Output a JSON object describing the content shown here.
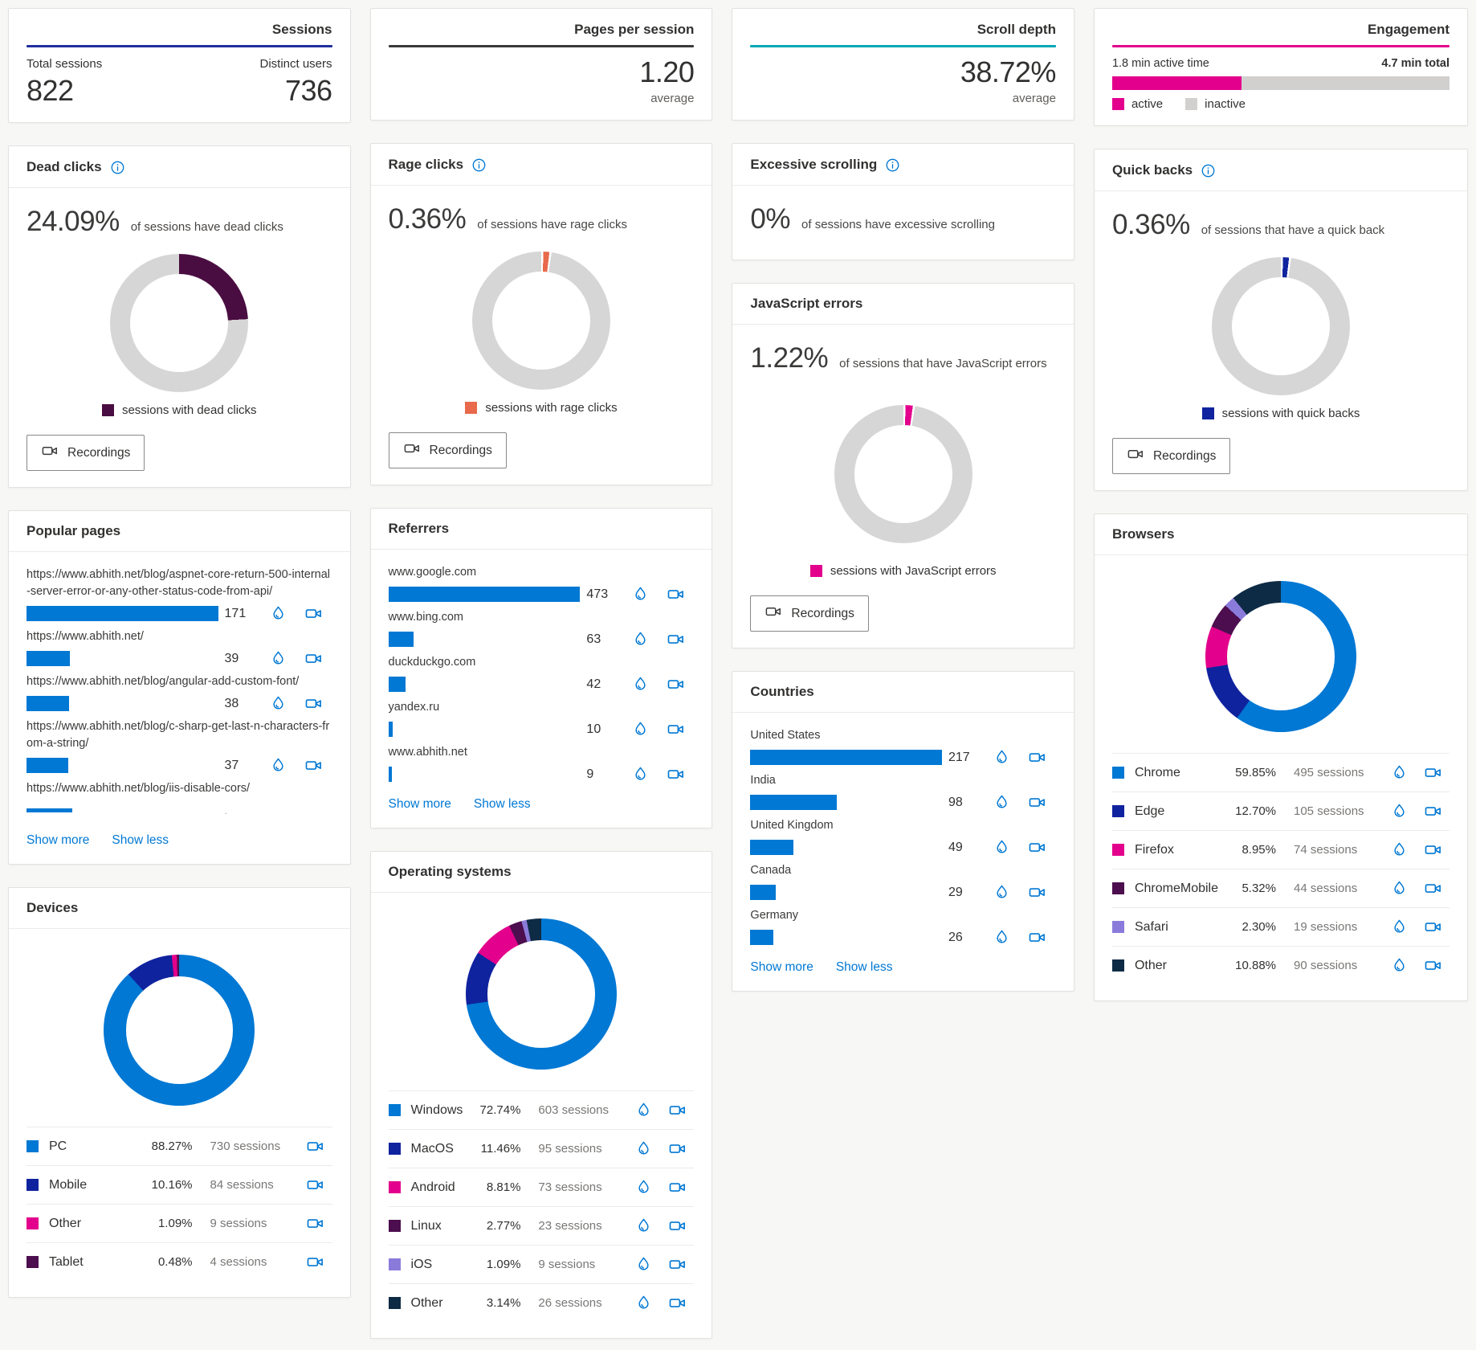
{
  "summary": {
    "sessions": {
      "title": "Sessions",
      "accent": "#212F9C",
      "metrics": [
        {
          "label": "Total sessions",
          "value": "822"
        },
        {
          "label": "Distinct users",
          "value": "736"
        }
      ]
    },
    "pages_per_session": {
      "title": "Pages per session",
      "accent": "#3B3A39",
      "value": "1.20",
      "caption": "average"
    },
    "scroll_depth": {
      "title": "Scroll depth",
      "accent": "#00A7B5",
      "value": "38.72%",
      "caption": "average"
    },
    "engagement": {
      "title": "Engagement",
      "accent": "#E3008C",
      "active_label": "1.8 min active time",
      "total_label": "4.7 min total",
      "active_pct": 38.3,
      "color": "#E3008C",
      "inactive_color": "#D2D0CE",
      "legend_active": "active",
      "legend_inactive": "inactive"
    }
  },
  "features": {
    "dead_clicks": {
      "title": "Dead clicks",
      "value": "24.09%",
      "caption": "of sessions have dead clicks",
      "legend": "sessions with dead clicks",
      "color": "#4A0D41",
      "pct": 24.09,
      "donut": [
        {
          "color": "#4A0D41",
          "pct": 24.09
        },
        {
          "color": "#D6D6D6",
          "pct": 75.91
        }
      ],
      "recordings_label": "Recordings"
    },
    "rage_clicks": {
      "title": "Rage clicks",
      "value": "0.36%",
      "caption": "of sessions have rage clicks",
      "legend": "sessions with rage clicks",
      "color": "#E8694B",
      "pct": 0.36,
      "donut": [
        {
          "color": "#FFFFFF",
          "pct": 0.5
        },
        {
          "color": "#E8694B",
          "pct": 1.4
        },
        {
          "color": "#FFFFFF",
          "pct": 0.5
        },
        {
          "color": "#D6D6D6",
          "pct": 97.6
        }
      ],
      "recordings_label": "Recordings"
    },
    "excessive_scrolling": {
      "title": "Excessive scrolling",
      "value": "0%",
      "caption": "of sessions have excessive scrolling"
    },
    "javascript_errors": {
      "title": "JavaScript errors",
      "value": "1.22%",
      "caption": "of sessions that have JavaScript errors",
      "legend": "sessions with JavaScript errors",
      "color": "#E3008C",
      "pct": 1.22,
      "donut": [
        {
          "color": "#FFFFFF",
          "pct": 0.5
        },
        {
          "color": "#E3008C",
          "pct": 1.7
        },
        {
          "color": "#FFFFFF",
          "pct": 0.5
        },
        {
          "color": "#D6D6D6",
          "pct": 97.3
        }
      ],
      "recordings_label": "Recordings"
    },
    "quick_backs": {
      "title": "Quick backs",
      "value": "0.36%",
      "caption": "of sessions that have a quick back",
      "legend": "sessions with quick backs",
      "color": "#10239E",
      "pct": 0.36,
      "donut": [
        {
          "color": "#FFFFFF",
          "pct": 0.5
        },
        {
          "color": "#10239E",
          "pct": 1.4
        },
        {
          "color": "#FFFFFF",
          "pct": 0.5
        },
        {
          "color": "#D6D6D6",
          "pct": 97.6
        }
      ],
      "recordings_label": "Recordings"
    }
  },
  "lists": {
    "popular_pages": {
      "title": "Popular pages",
      "show_more": "Show more",
      "show_less": "Show less",
      "items": [
        {
          "label": "https://www.abhith.net/blog/aspnet-core-return-500-internal-server-error-or-any-other-status-code-from-api/",
          "value": "171",
          "bar_pct": 100
        },
        {
          "label": "https://www.abhith.net/",
          "value": "39",
          "bar_pct": 22.8
        },
        {
          "label": "https://www.abhith.net/blog/angular-add-custom-font/",
          "value": "38",
          "bar_pct": 22.2
        },
        {
          "label": "https://www.abhith.net/blog/c-sharp-get-last-n-characters-from-a-string/",
          "value": "37",
          "bar_pct": 21.6
        },
        {
          "label": "https://www.abhith.net/blog/iis-disable-cors/",
          "value": ".",
          "bar_pct": 24,
          "row_class": "partial"
        }
      ]
    },
    "referrers": {
      "title": "Referrers",
      "show_more": "Show more",
      "show_less": "Show less",
      "items": [
        {
          "label": "www.google.com",
          "value": "473",
          "bar_pct": 100
        },
        {
          "label": "www.bing.com",
          "value": "63",
          "bar_pct": 13.3
        },
        {
          "label": "duckduckgo.com",
          "value": "42",
          "bar_pct": 8.9
        },
        {
          "label": "yandex.ru",
          "value": "10",
          "bar_pct": 2.1
        },
        {
          "label": "www.abhith.net",
          "value": "9",
          "bar_pct": 1.9
        }
      ]
    },
    "countries": {
      "title": "Countries",
      "show_more": "Show more",
      "show_less": "Show less",
      "items": [
        {
          "label": "United States",
          "value": "217",
          "bar_pct": 100
        },
        {
          "label": "India",
          "value": "98",
          "bar_pct": 45.2
        },
        {
          "label": "United Kingdom",
          "value": "49",
          "bar_pct": 22.6
        },
        {
          "label": "Canada",
          "value": "29",
          "bar_pct": 13.4
        },
        {
          "label": "Germany",
          "value": "26",
          "bar_pct": 12
        }
      ]
    }
  },
  "distributions": {
    "browsers": {
      "title": "Browsers",
      "donut": [
        {
          "color": "#0078D4",
          "pct": 59.85
        },
        {
          "color": "#10239E",
          "pct": 12.7
        },
        {
          "color": "#E3008C",
          "pct": 8.95
        },
        {
          "color": "#4C0E4E",
          "pct": 5.32
        },
        {
          "color": "#8A7BDB",
          "pct": 2.3
        },
        {
          "color": "#0E2B45",
          "pct": 10.88
        }
      ],
      "items": [
        {
          "label": "Chrome",
          "pct": "59.85%",
          "sessions": "495 sessions",
          "color": "#0078D4"
        },
        {
          "label": "Edge",
          "pct": "12.70%",
          "sessions": "105 sessions",
          "color": "#10239E"
        },
        {
          "label": "Firefox",
          "pct": "8.95%",
          "sessions": "74 sessions",
          "color": "#E3008C"
        },
        {
          "label": "ChromeMobile",
          "pct": "5.32%",
          "sessions": "44 sessions",
          "color": "#4C0E4E"
        },
        {
          "label": "Safari",
          "pct": "2.30%",
          "sessions": "19 sessions",
          "color": "#8A7BDB"
        },
        {
          "label": "Other",
          "pct": "10.88%",
          "sessions": "90 sessions",
          "color": "#0E2B45"
        }
      ]
    },
    "devices": {
      "title": "Devices",
      "donut": [
        {
          "color": "#0078D4",
          "pct": 88.27
        },
        {
          "color": "#10239E",
          "pct": 10.16
        },
        {
          "color": "#E3008C",
          "pct": 1.09
        },
        {
          "color": "#4C0E4E",
          "pct": 0.48
        }
      ],
      "items": [
        {
          "label": "PC",
          "pct": "88.27%",
          "sessions": "730 sessions",
          "color": "#0078D4"
        },
        {
          "label": "Mobile",
          "pct": "10.16%",
          "sessions": "84 sessions",
          "color": "#10239E"
        },
        {
          "label": "Other",
          "pct": "1.09%",
          "sessions": "9 sessions",
          "color": "#E3008C"
        },
        {
          "label": "Tablet",
          "pct": "0.48%",
          "sessions": "4 sessions",
          "color": "#4C0E4E"
        }
      ]
    },
    "operating_systems": {
      "title": "Operating systems",
      "donut": [
        {
          "color": "#0078D4",
          "pct": 72.74
        },
        {
          "color": "#10239E",
          "pct": 11.46
        },
        {
          "color": "#E3008C",
          "pct": 8.81
        },
        {
          "color": "#4C0E4E",
          "pct": 2.77
        },
        {
          "color": "#8A7BDB",
          "pct": 1.09
        },
        {
          "color": "#0E2B45",
          "pct": 3.14
        }
      ],
      "items": [
        {
          "label": "Windows",
          "pct": "72.74%",
          "sessions": "603 sessions",
          "color": "#0078D4"
        },
        {
          "label": "MacOS",
          "pct": "11.46%",
          "sessions": "95 sessions",
          "color": "#10239E"
        },
        {
          "label": "Android",
          "pct": "8.81%",
          "sessions": "73 sessions",
          "color": "#E3008C"
        },
        {
          "label": "Linux",
          "pct": "2.77%",
          "sessions": "23 sessions",
          "color": "#4C0E4E"
        },
        {
          "label": "iOS",
          "pct": "1.09%",
          "sessions": "9 sessions",
          "color": "#8A7BDB"
        },
        {
          "label": "Other",
          "pct": "3.14%",
          "sessions": "26 sessions",
          "color": "#0E2B45"
        }
      ]
    }
  }
}
